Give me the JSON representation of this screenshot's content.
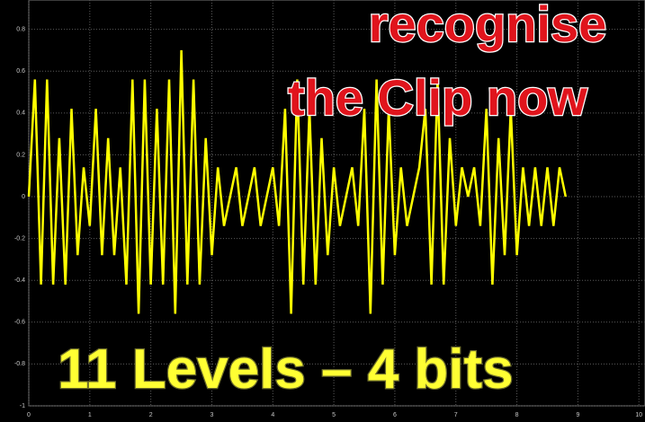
{
  "chart_data": {
    "type": "line",
    "annotations": [
      "recognise",
      "the Clip now",
      "11 Levels – 4 bits"
    ],
    "x": [
      0,
      0.1,
      0.2,
      0.3,
      0.4,
      0.5,
      0.6,
      0.7,
      0.8,
      0.9,
      1,
      1.1,
      1.2,
      1.3,
      1.4,
      1.5,
      1.6,
      1.7,
      1.8,
      1.9,
      2,
      2.1,
      2.2,
      2.3,
      2.4,
      2.5,
      2.6,
      2.7,
      2.8,
      2.9,
      3,
      3.1,
      3.2,
      3.3,
      3.4,
      3.5,
      3.6,
      3.7,
      3.8,
      3.9,
      4,
      4.1,
      4.2,
      4.3,
      4.4,
      4.5,
      4.6,
      4.7,
      4.8,
      4.9,
      5,
      5.1,
      5.2,
      5.3,
      5.4,
      5.5,
      5.6,
      5.7,
      5.8,
      5.9,
      6,
      6.1,
      6.2,
      6.3,
      6.4,
      6.5,
      6.6,
      6.7,
      6.8,
      6.9,
      7,
      7.1,
      7.2,
      7.3,
      7.4,
      7.5,
      7.6,
      7.7,
      7.8,
      7.9,
      8,
      8.1,
      8.2,
      8.3,
      8.4,
      8.5,
      8.6,
      8.7,
      8.8
    ],
    "values": [
      0,
      0.56,
      -0.42,
      0.56,
      -0.42,
      0.28,
      -0.42,
      0.42,
      -0.28,
      0.14,
      -0.14,
      0.42,
      -0.28,
      0.28,
      -0.28,
      0.14,
      -0.42,
      0.56,
      -0.56,
      0.56,
      -0.42,
      0.42,
      -0.42,
      0.56,
      -0.56,
      0.7,
      -0.42,
      0.56,
      -0.42,
      0.28,
      -0.28,
      0.14,
      -0.14,
      0,
      0.14,
      -0.14,
      0,
      0.14,
      -0.14,
      0,
      0.14,
      -0.14,
      0.42,
      -0.56,
      0.56,
      -0.42,
      0.42,
      -0.42,
      0.28,
      -0.28,
      0.14,
      -0.14,
      0,
      0.14,
      -0.14,
      0.42,
      -0.56,
      0.56,
      -0.42,
      0.42,
      -0.28,
      0.14,
      -0.14,
      0,
      0.14,
      0.42,
      -0.42,
      0.56,
      -0.42,
      0.28,
      -0.14,
      0.14,
      0,
      0.14,
      -0.14,
      0.42,
      -0.42,
      0.28,
      -0.28,
      0.42,
      -0.28,
      0.14,
      -0.14,
      0.14,
      -0.14,
      0.14,
      -0.14,
      0.14,
      0
    ],
    "color": "#ffff00",
    "xlim": [
      0,
      10.1
    ],
    "xticks": [
      0,
      1,
      2,
      3,
      4,
      5,
      6,
      7,
      8,
      9,
      10
    ],
    "ylim": [
      -1,
      0.94
    ],
    "yticks": [
      0.8,
      0.6,
      0.4,
      0.2,
      0,
      -0.2,
      -0.4,
      -0.6,
      -0.8,
      -1
    ],
    "grid": true
  }
}
